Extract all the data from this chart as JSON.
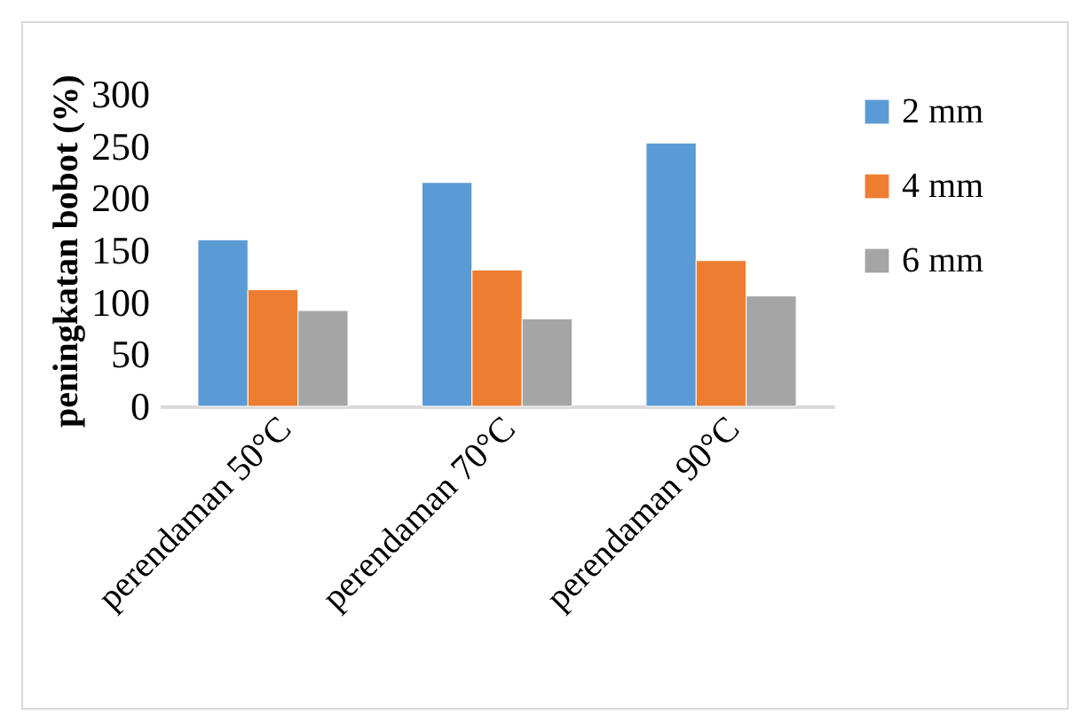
{
  "chart_data": {
    "type": "bar",
    "ylabel": "peningkatan bobot (%)",
    "categories": [
      "perendaman 50°C",
      "perendaman 70°C",
      "perendaman 90°C"
    ],
    "series": [
      {
        "name": "2 mm",
        "color": "#5b9bd5",
        "values": [
          160,
          215,
          253
        ]
      },
      {
        "name": "4 mm",
        "color": "#ed7d31",
        "values": [
          112,
          131,
          140
        ]
      },
      {
        "name": "6 mm",
        "color": "#a5a5a5",
        "values": [
          92,
          84,
          106
        ]
      }
    ],
    "ylim": [
      0,
      300
    ],
    "yticks": [
      0,
      50,
      100,
      150,
      200,
      250,
      300
    ],
    "grid": false,
    "legend": "right"
  }
}
